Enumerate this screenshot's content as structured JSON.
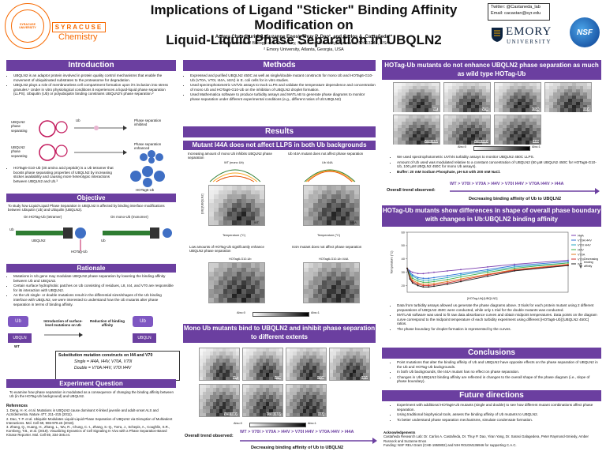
{
  "header": {
    "title_line1": "Implications of Ligand \"Sticker\" Binding Affinity Modification on",
    "title_line2": "Liquid-Liquid Phase Separation in UBQLN2",
    "authors": "Antara Chaudhuri 1,2, Suzanne Enos¹, Thuy P. Dao¹, and Carlos A. Castañeda¹*",
    "affil1": "¹ Departments of Biology and Chemistry, Syracuse University, Syracuse, NY 13244, USA",
    "affil2": "² Emory University, Atlanta, Georgia, USA",
    "twitter": "Twitter: @Castaneda_lab",
    "email": "Email: cacastan@syr.edu",
    "su_logo_text": "SYRACUSE UNIVERSITY",
    "su_dept": "Chemistry",
    "su_wordmark": "SYRACUSE",
    "emory": "EMORY",
    "emory_sub": "UNIVERSITY",
    "nsf": "NSF"
  },
  "intro": {
    "title": "Introduction",
    "bullets": [
      "UBQLN2 is an adaptor protein involved in protein quality control mechanisms that enable the movement of ubiquitinated substrates to the proteasome for degradation.",
      "UBQLN2 plays a role of membraneless cell compartment formation upon it's inclusion into stress granules.¹ Under in vitro physiological conditions it experiences a liquid-liquid phase separation (LLPS). Ubiquitin (Ub) or polyubiquitin binding constrains UBQLN2's phase separation.²"
    ],
    "fig_labels": [
      "UBQLN2 phase separating",
      "Ub",
      "Phase separation inhibited",
      "UBQLN2 phase separating",
      "Phase separation enhanced",
      "HOTag6-Ub"
    ],
    "bullet3": "HOTag6-G10-Ub (30 amino acid peptide) is a Ub tetramer that boosts phase separating properties of UBQLN2 by increasing sticker availability and causing more heterotypic interactions between UBQLN2 and Ub.³"
  },
  "objective": {
    "title": "Objective",
    "text": "To study how Liquid-Liquid Phase Separation in UBQLN2 is affected by binding interface modifications between Ubiquitin (Ub) and Ubiquilin (UBQLN2).",
    "fig_left": "On HOTag-Ub (tetramer)",
    "fig_right": "On mono-Ub (monomer)",
    "labels": [
      "Ub",
      "UBQLN2",
      "Ub",
      "HOTag-Ub"
    ]
  },
  "rationale": {
    "title": "Rationale",
    "bullets": [
      "Mutations in Ub gene may modulate UBQLN2 phase separation by lowering the binding affinity between Ub and UBQLN2.",
      "Certain surface hydrophobic patches on Ub consisting of residues, L8, I44, and V70 are responsible for its interaction with UBQLN2.",
      "As the Ub single- or double mutations result in the differential sizes/shapes of the Ub binding interface with UBQLN2, we were interested to understand how the Ub mutants alter phase separation in terms of binding affinity."
    ],
    "fig_labels": [
      "Ub",
      "Introduction of surface-level mutations on Ub",
      "Reduction of binding affinity",
      "Ub",
      "UBQLN",
      "UBQLN",
      "WT"
    ],
    "subs_title": "Substitution mutation constructs on I44 and V70",
    "single": "Single = I44A, I44V, V70A, V70I",
    "double": "Double = V70A I44V, V70I I44V"
  },
  "experiment": {
    "title": "Experiment Question",
    "text": "To examine how phase separation is modulated as a consequence of changing the binding affinity between Ub (in the HOTag-Ub background) and UBQLN2."
  },
  "references": {
    "title": "References",
    "items": [
      "1. Deng, H.-X. et al. Mutations in UBQLN2 cause dominant X-linked juvenile and adult-onset ALS and ALS/dementia. Nature 477, 211–215 (2011).",
      "2. Dao, T. P. et al. Ubiquitin Modulates Liquid-Liquid Phase Separation of UBQLN2 via Disruption of Multivalent Interactions. Mol. Cell 69, 965-978.e6 (2018).",
      "3. Zhang, Q., Huang, H., Zhang, L., Wu, R., Chung, C.-I., Zhang, S.-Q., Torra, J., Schepis, A., Coughlin, S.R., Kornberg, T.B., et al. (2018). Visualizing Dynamics of Cell Signaling In Vivo with a Phase Separation-Based Kinase Reporter. Mol. Cell 69, 334-346.e4."
    ]
  },
  "methods": {
    "title": "Methods",
    "bullets": [
      "Expressed and purified UBQLN2 450C as well as single/double mutant constructs for mono Ub and HOTag6-G10-Ub (V70A, V70I, I44A, I44V) in E. coli cells for in vitro studies.",
      "Used spectrophotometric UV/Vis assays to track LLPS and validate the temperature dependence and concentration of mono Ub and HOTag6-G10-Ub on the inhibition of UBQLN2 droplet formation.",
      "Used Mathematica software to produce turbidity assays and MATLAB to generate phase diagrams to monitor phase separation under different experimental conditions (e.g., different ratios of Ub:UBQLN2)"
    ]
  },
  "results": {
    "title": "Results",
    "sub1": "Mutant I44A does not affect LLPS in both Ub backgrounds",
    "fig1a_cap": "Increasing amount of mono Ub inhibits UBQLN2 phase separation",
    "fig1a_inner": "WT (mono Ub)",
    "fig1b_cap": "Ub I44A mutant does not affect phase separation",
    "fig1b_inner": "Ub I44A",
    "fig1c_cap": "Low amounts of HOTag-Ub significantly enhance UBQLN2 phase separation",
    "fig1c_inner": "HOTag6-G10-Ub",
    "fig1d_cap": "I44A mutant does not affect phase separation",
    "fig1d_inner": "HOTag6-G10-Ub I44A",
    "heat_wt": "WT",
    "heat_i44a": "I44A",
    "abs0": "Abs=0",
    "abs1": "Abs=1",
    "ylabel": "[Ub]:[UBQLN2]",
    "xlabel": "Temperature (°C)",
    "sub2": "Mono Ub mutants bind to UBQLN2 and inhibit phase separation to different extents",
    "mono_panels": [
      "WT",
      "V70I",
      "V70A",
      "I44V",
      "V70I I44V",
      "V70A I44V",
      "I44A"
    ],
    "trend_label": "Overall trend observed:",
    "trend_seq": "WT > V70I > V70A > I44V > V70I I44V > V70A I44V > I44A",
    "trend_arrow": "Decreasing binding affinity of Ub to UBQLN2"
  },
  "hotag": {
    "title": "HOTag-Ub mutants do not enhance UBQLN2 phase separation as much as wild type HOTag-Ub",
    "panels": [
      "WT",
      "V70I",
      "V70A",
      "I44V",
      "V70I I44V",
      "V70A I44V",
      "I44A"
    ],
    "abs0": "Abs=0",
    "abs1": "Abs=1",
    "bullets": [
      "We used spectrophotometric UV/Vis turbidity assays to monitor UBQLN2 450C LLPS.",
      "Amount of Ub used was modulated relative to a constant concentration of UBQLN2 (50 µM UBQLN2 450C for HOTag6-G10-Ub, 100 µM UBQLN2 450C for mono Ub assays).",
      "Buffer: 20 mM Sodium Phosphate, pH 6.8 with 200 mM NaCl."
    ],
    "trend_seq": "WT > V70I > V70A > I44V > V70I I44V > V70A I44V > I44A",
    "trend_label": "Overall trend observed:",
    "trend_arrow": "Decreasing binding affinity of Ub to UBQLN2"
  },
  "boundary": {
    "title": "HOTag-Ub mutants show differences in shape of overall phase boundary with changes in Ub:UBQLN2 binding affinity",
    "ylabel": "Temperature (°C)",
    "xlabel": "[HOTag-Ub]:[UBQLN2]",
    "arrow_label": "Decreasing binding affinity",
    "bullets": [
      "Data from turbidity assays allowed us generate the phase diagrams above. 3 trials for each protein mutant using 2 different preparations of UBQLN2 450C were conducted, while only 1 trial for the double mutants was conducted.",
      "MATLAB software was used to fit raw data absorbance curves and obtain midpoint temperatures. Data points on the diagram curve correspond to the midpoint temperature of each turbidity experiment using different [HOTag6-Ub]:[UBQLN2 450C] ratios.",
      "The phase boundary for droplet formation is represented by the curves."
    ]
  },
  "chart_data": {
    "type": "line",
    "title": "",
    "xlabel": "[HOTag-Ub]:[UBQLN2]",
    "ylabel": "Temperature (°C)",
    "x": [
      0,
      0.05,
      0.1,
      0.2,
      0.3,
      0.4,
      0.5,
      0.75,
      1,
      1.5,
      2,
      3
    ],
    "xlim": [
      0,
      3
    ],
    "ylim": [
      15,
      60
    ],
    "ticks_y": [
      20,
      30,
      40,
      50,
      60
    ],
    "legend_position": "right",
    "series": [
      {
        "name": "I44A",
        "color": "#7b3fb0",
        "values": [
          33,
          31,
          30,
          29,
          29,
          29.5,
          30,
          31,
          32,
          34,
          36,
          39
        ]
      },
      {
        "name": "V70A I44V",
        "color": "#2f6fd6",
        "values": [
          33,
          30,
          28,
          26,
          25.5,
          25.5,
          26,
          27.5,
          29,
          32,
          35,
          38
        ]
      },
      {
        "name": "V70I I44V",
        "color": "#2aa8c0",
        "values": [
          33,
          29,
          27,
          25,
          24,
          24,
          24.5,
          26,
          28,
          31,
          34,
          37
        ]
      },
      {
        "name": "I44V",
        "color": "#3cb04a",
        "values": [
          33,
          28,
          25.5,
          23.5,
          22.5,
          22.5,
          23,
          24.5,
          26.5,
          30,
          33,
          37
        ]
      },
      {
        "name": "V70A",
        "color": "#e07a1f",
        "values": [
          33,
          27,
          24,
          22,
          21,
          21,
          21.5,
          23,
          25,
          28.5,
          32,
          36
        ]
      },
      {
        "name": "V70I",
        "color": "#d32f2f",
        "values": [
          33,
          26,
          23,
          21,
          20,
          20,
          20.5,
          22,
          24,
          28,
          31.5,
          35.5
        ]
      },
      {
        "name": "WT",
        "color": "#222222",
        "values": [
          33,
          25,
          22,
          20,
          19,
          19,
          19.5,
          21,
          23,
          27,
          31,
          35
        ]
      }
    ]
  },
  "conclusions": {
    "title": "Conclusions",
    "bullets": [
      "Point mutations that alter the binding affinity of Ub and UBQLN2 have opposite effects on the phase separation of UBQLN2 in the Ub and HOTag-Ub backgrounds.",
      "In both Ub backgrounds, the I44A mutant has no effect on phase separation.",
      "Changes in Ub:UBQLN2 binding affinity are reflected in changes to the overall shape of the phase diagram (i.e., slope of phase boundary)."
    ]
  },
  "future": {
    "title": "Future directions",
    "bullets": [
      "Experiment with additional HOTag6-Ub mutants (single and double) to see how different mutant combinations affect phase separation.",
      "Using traditional biophysical tools, assess the binding affinity of Ub mutants to UBQLN2.",
      "To better understand phase separation mechanisms, simulate condensate formation."
    ]
  },
  "ack": {
    "title": "Acknowledgements",
    "text": "Castañeda Research Lab: Dr. Carlos A. Castañeda, Dr. Thuy P. Dao, Yiran Yang, Dr. Sarasi Galagedera, Peter Raymond-Smiedy, Amber Rusnock and Suzanne Enos",
    "funding": "Funding: NSF REU Grant (CHE-1950802) and NIH R01GM136946 for supporting C.A.C."
  }
}
